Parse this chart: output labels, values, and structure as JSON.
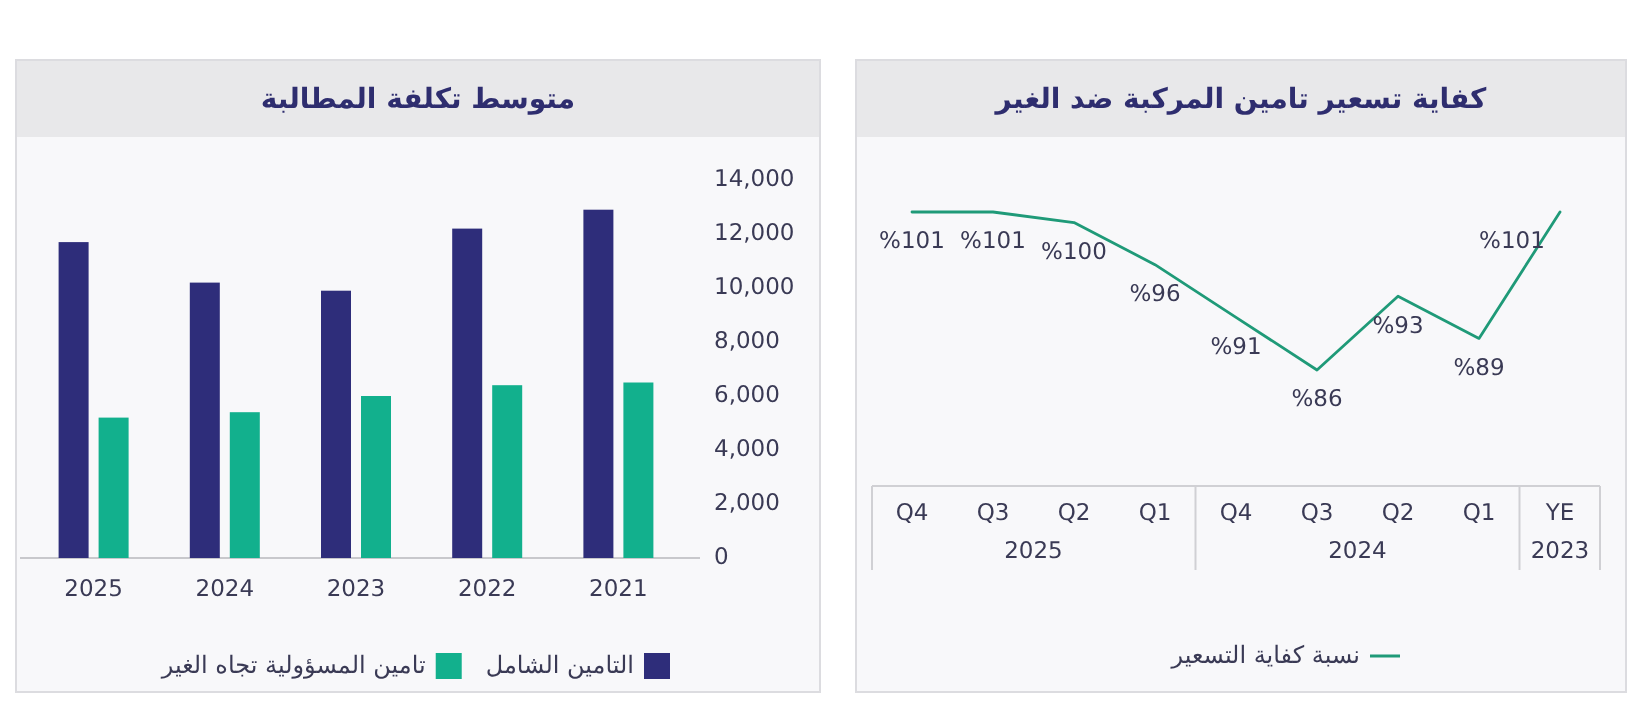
{
  "chart_data": [
    {
      "type": "bar",
      "title": "متوسط تكلفة المطالبة",
      "categories": [
        "2025",
        "2024",
        "2023",
        "2022",
        "2021"
      ],
      "series": [
        {
          "name": "التامين الشامل",
          "color": "#2e2d7a",
          "values": [
            11700,
            10200,
            9900,
            12200,
            12900
          ]
        },
        {
          "name": "تامين المسؤولية تجاه الغير",
          "color": "#12b08d",
          "values": [
            5200,
            5400,
            6000,
            6400,
            6500
          ]
        }
      ],
      "ylim": [
        0,
        14000
      ],
      "yticks": [
        0,
        {
          "value": 2000,
          "label": "2,000"
        },
        {
          "value": 4000,
          "label": "4,000"
        },
        {
          "value": 6000,
          "label": "6,000"
        },
        {
          "value": 8000,
          "label": "8,000"
        },
        {
          "value": 10000,
          "label": "10,000"
        },
        {
          "value": 12000,
          "label": "12,000"
        },
        {
          "value": 14000,
          "label": "14,000"
        }
      ],
      "legend": "bottom"
    },
    {
      "type": "line",
      "title": "كفاية تسعير تامين المركبة ضد الغير",
      "categories": [
        "Q4",
        "Q3",
        "Q2",
        "Q1",
        "Q4",
        "Q3",
        "Q2",
        "Q1",
        "YE"
      ],
      "series": [
        {
          "name": "نسبة كفاية التسعير",
          "color": "#1f9a78",
          "values": [
            101,
            101,
            100,
            96,
            91,
            86,
            93,
            89,
            101
          ],
          "value_labels": [
            "%101",
            "%101",
            "%100",
            "%96",
            "%91",
            "%86",
            "%93",
            "%89",
            "%101"
          ]
        }
      ],
      "annotations": [
        "2025",
        "2024",
        "2023"
      ],
      "legend": "bottom"
    }
  ]
}
